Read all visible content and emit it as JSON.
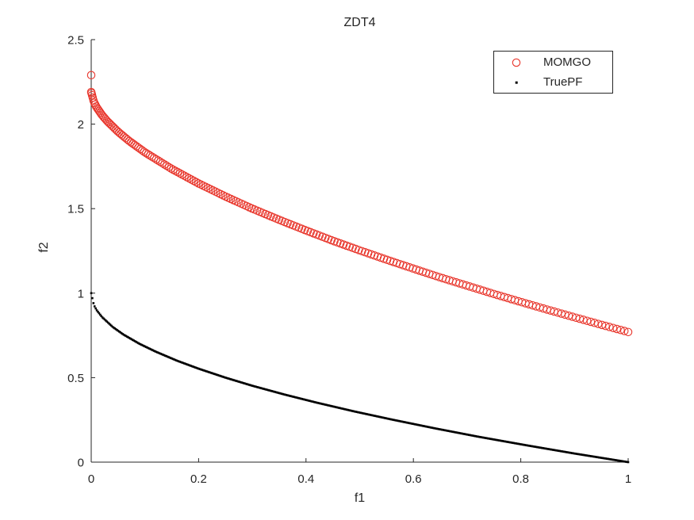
{
  "chart_data": {
    "type": "scatter",
    "title": "ZDT4",
    "xlabel": "f1",
    "ylabel": "f2",
    "xlim": [
      0,
      1
    ],
    "ylim": [
      0,
      2.5
    ],
    "xticks": [
      "0",
      "0.2",
      "0.4",
      "0.6",
      "0.8",
      "1"
    ],
    "yticks": [
      "0",
      "0.5",
      "1",
      "1.5",
      "2",
      "2.5"
    ],
    "grid": false,
    "box": false,
    "tick_direction": "in",
    "axis_color": "#262626",
    "legend_position": "northeast",
    "series": [
      {
        "name": "MOMGO",
        "marker": "open-circle",
        "color": "#e8352b",
        "marker_size": 9.4,
        "edge_width": 1.1,
        "n_markers": 200,
        "x_distribution_power": 1.4,
        "outlier_points": [
          [
            0,
            2.29
          ]
        ],
        "curve_control_points": [
          [
            0,
            2.19
          ],
          [
            0.005,
            2.131
          ],
          [
            0.01,
            2.1
          ],
          [
            0.02,
            2.054
          ],
          [
            0.03,
            2.017
          ],
          [
            0.05,
            1.955
          ],
          [
            0.07,
            1.902
          ],
          [
            0.1,
            1.833
          ],
          [
            0.15,
            1.735
          ],
          [
            0.2,
            1.649
          ],
          [
            0.25,
            1.572
          ],
          [
            0.3,
            1.5
          ],
          [
            0.35,
            1.434
          ],
          [
            0.4,
            1.371
          ],
          [
            0.45,
            1.31
          ],
          [
            0.5,
            1.253
          ],
          [
            0.55,
            1.198
          ],
          [
            0.6,
            1.145
          ],
          [
            0.65,
            1.093
          ],
          [
            0.7,
            1.044
          ],
          [
            0.75,
            0.995
          ],
          [
            0.8,
            0.948
          ],
          [
            0.85,
            0.902
          ],
          [
            0.9,
            0.857
          ],
          [
            0.95,
            0.813
          ],
          [
            1,
            0.77
          ]
        ]
      },
      {
        "name": "TruePF",
        "marker": "dot",
        "color": "#000000",
        "marker_size": 2.6,
        "edge_width": 0,
        "n_markers": 480,
        "x_distribution_power": 1,
        "outlier_points": [],
        "curve_control_points": [
          [
            0,
            1
          ],
          [
            0.005,
            0.929
          ],
          [
            0.01,
            0.9
          ],
          [
            0.02,
            0.859
          ],
          [
            0.04,
            0.8
          ],
          [
            0.06,
            0.755
          ],
          [
            0.09,
            0.7
          ],
          [
            0.12,
            0.654
          ],
          [
            0.16,
            0.6
          ],
          [
            0.2,
            0.553
          ],
          [
            0.25,
            0.5
          ],
          [
            0.3,
            0.452
          ],
          [
            0.36,
            0.4
          ],
          [
            0.42,
            0.352
          ],
          [
            0.49,
            0.3
          ],
          [
            0.56,
            0.252
          ],
          [
            0.64,
            0.2
          ],
          [
            0.72,
            0.151
          ],
          [
            0.81,
            0.1
          ],
          [
            0.9,
            0.051
          ],
          [
            1,
            0
          ]
        ]
      }
    ]
  }
}
